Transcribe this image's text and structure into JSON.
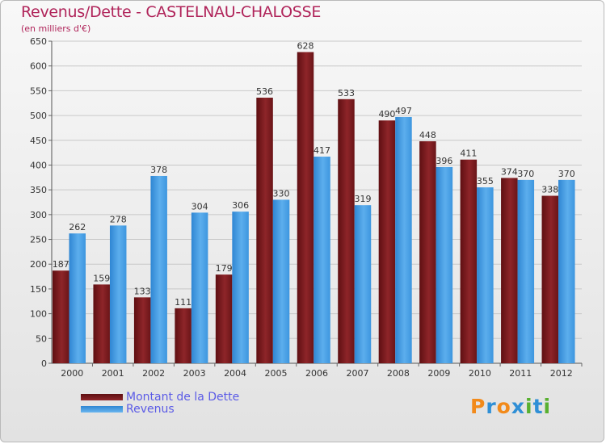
{
  "title": "Revenus/Dette - CASTELNAU-CHALOSSE",
  "subtitle": "(en milliers d'€)",
  "logo": {
    "text": "Proxiti",
    "letters": [
      "P",
      "r",
      "o",
      "x",
      "i",
      "t",
      "i"
    ],
    "colors": [
      "#f28a1a",
      "#2f8fd6",
      "#f28a1a",
      "#2f8fd6",
      "#58b030",
      "#2f8fd6",
      "#58b030"
    ]
  },
  "colors": {
    "dette": "#7a1a1d",
    "dette_light": "#a8353a",
    "revenus": "#3d96df",
    "revenus_light": "#6ab6ef",
    "grid": "#c8c8c8",
    "axis_text": "#333333"
  },
  "chart_data": {
    "type": "bar",
    "title": "Revenus/Dette - CASTELNAU-CHALOSSE",
    "ylabel": "(en milliers d'€)",
    "xlabel": "",
    "categories": [
      "2000",
      "2001",
      "2002",
      "2003",
      "2004",
      "2005",
      "2006",
      "2007",
      "2008",
      "2009",
      "2010",
      "2011",
      "2012"
    ],
    "series": [
      {
        "name": "Montant de la Dette",
        "values": [
          187,
          159,
          133,
          111,
          179,
          536,
          628,
          533,
          490,
          448,
          411,
          374,
          338
        ]
      },
      {
        "name": "Revenus",
        "values": [
          262,
          278,
          378,
          304,
          306,
          330,
          417,
          319,
          497,
          396,
          355,
          370,
          370
        ]
      }
    ],
    "ylim": [
      0,
      650
    ],
    "yticks": [
      0,
      50,
      100,
      150,
      200,
      250,
      300,
      350,
      400,
      450,
      500,
      550,
      600,
      650
    ],
    "grid": true,
    "legend": "bottom-left"
  }
}
